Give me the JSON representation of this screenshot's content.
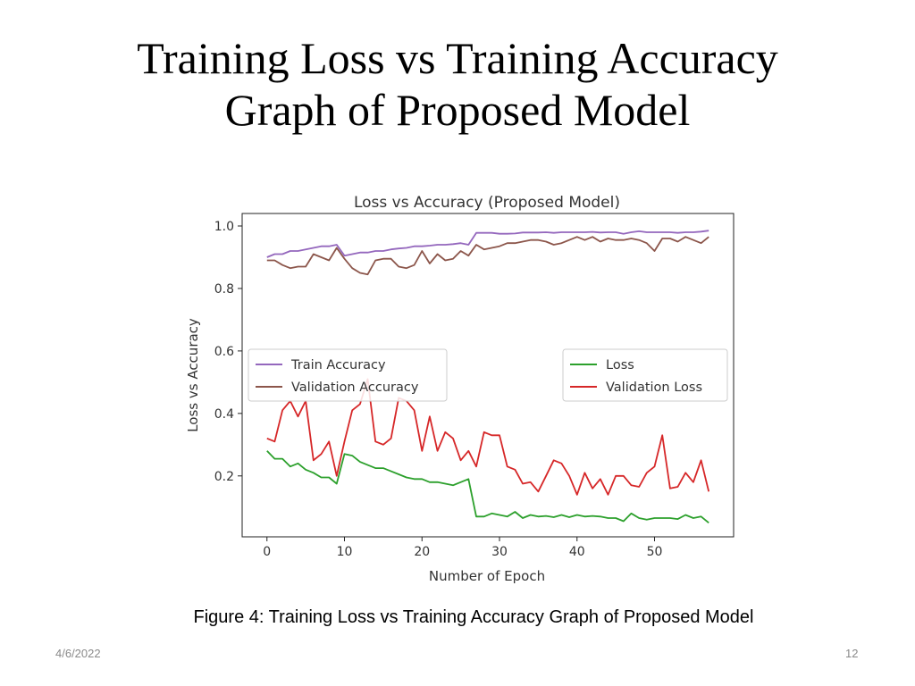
{
  "slide": {
    "title_line1": "Training Loss vs Training Accuracy",
    "title_line2": "Graph of Proposed Model",
    "caption": "Figure 4: Training Loss vs Training Accuracy Graph of Proposed Model",
    "date": "4/6/2022",
    "page_number": "12"
  },
  "chart_data": {
    "type": "line",
    "title": "Loss vs Accuracy (Proposed Model)",
    "xlabel": "Number of Epoch",
    "ylabel": "Loss vs Accuracy",
    "xlim": [
      -3.2,
      60.2
    ],
    "ylim": [
      0.005,
      1.04
    ],
    "xticks": [
      0,
      10,
      20,
      30,
      40,
      50
    ],
    "yticks": [
      0.2,
      0.4,
      0.6,
      0.8,
      1.0
    ],
    "ytick_labels": [
      "0.2",
      "0.4",
      "0.6",
      "0.8",
      "1.0"
    ],
    "legends": [
      {
        "position": "center-left",
        "entries": [
          0,
          1
        ]
      },
      {
        "position": "center-right",
        "entries": [
          2,
          3
        ]
      }
    ],
    "x": [
      0,
      1,
      2,
      3,
      4,
      5,
      6,
      7,
      8,
      9,
      10,
      11,
      12,
      13,
      14,
      15,
      16,
      17,
      18,
      19,
      20,
      21,
      22,
      23,
      24,
      25,
      26,
      27,
      28,
      29,
      30,
      31,
      32,
      33,
      34,
      35,
      36,
      37,
      38,
      39,
      40,
      41,
      42,
      43,
      44,
      45,
      46,
      47,
      48,
      49,
      50,
      51,
      52,
      53,
      54,
      55,
      56,
      57
    ],
    "series": [
      {
        "name": "Train Accuracy",
        "color": "#9467bd",
        "values": [
          0.9,
          0.91,
          0.91,
          0.92,
          0.92,
          0.925,
          0.93,
          0.935,
          0.935,
          0.94,
          0.905,
          0.91,
          0.915,
          0.915,
          0.92,
          0.92,
          0.925,
          0.928,
          0.93,
          0.935,
          0.935,
          0.937,
          0.94,
          0.94,
          0.942,
          0.945,
          0.94,
          0.978,
          0.978,
          0.978,
          0.975,
          0.975,
          0.976,
          0.979,
          0.979,
          0.979,
          0.98,
          0.978,
          0.98,
          0.98,
          0.98,
          0.98,
          0.981,
          0.979,
          0.98,
          0.98,
          0.975,
          0.98,
          0.983,
          0.98,
          0.98,
          0.98,
          0.98,
          0.978,
          0.98,
          0.98,
          0.982,
          0.985
        ]
      },
      {
        "name": "Validation Accuracy",
        "color": "#8c564b",
        "values": [
          0.89,
          0.89,
          0.875,
          0.865,
          0.87,
          0.87,
          0.91,
          0.9,
          0.89,
          0.93,
          0.895,
          0.865,
          0.85,
          0.845,
          0.89,
          0.895,
          0.895,
          0.87,
          0.865,
          0.875,
          0.92,
          0.88,
          0.91,
          0.89,
          0.895,
          0.92,
          0.905,
          0.94,
          0.925,
          0.93,
          0.935,
          0.945,
          0.945,
          0.95,
          0.955,
          0.955,
          0.95,
          0.94,
          0.945,
          0.955,
          0.965,
          0.955,
          0.965,
          0.95,
          0.96,
          0.955,
          0.955,
          0.96,
          0.955,
          0.945,
          0.92,
          0.96,
          0.96,
          0.95,
          0.965,
          0.955,
          0.945,
          0.965
        ]
      },
      {
        "name": "Loss",
        "color": "#2ca02c",
        "values": [
          0.28,
          0.255,
          0.255,
          0.23,
          0.24,
          0.22,
          0.21,
          0.195,
          0.195,
          0.175,
          0.27,
          0.265,
          0.245,
          0.235,
          0.225,
          0.225,
          0.215,
          0.205,
          0.195,
          0.19,
          0.19,
          0.18,
          0.18,
          0.175,
          0.17,
          0.18,
          0.19,
          0.07,
          0.07,
          0.08,
          0.075,
          0.07,
          0.085,
          0.065,
          0.075,
          0.07,
          0.072,
          0.068,
          0.075,
          0.068,
          0.075,
          0.07,
          0.072,
          0.07,
          0.065,
          0.065,
          0.055,
          0.08,
          0.065,
          0.06,
          0.065,
          0.065,
          0.065,
          0.062,
          0.075,
          0.065,
          0.07,
          0.05
        ]
      },
      {
        "name": "Validation Loss",
        "color": "#d62728",
        "values": [
          0.32,
          0.31,
          0.41,
          0.44,
          0.39,
          0.44,
          0.25,
          0.27,
          0.31,
          0.2,
          0.31,
          0.41,
          0.43,
          0.51,
          0.31,
          0.3,
          0.32,
          0.45,
          0.44,
          0.41,
          0.28,
          0.39,
          0.28,
          0.34,
          0.32,
          0.25,
          0.28,
          0.23,
          0.34,
          0.33,
          0.33,
          0.23,
          0.22,
          0.175,
          0.18,
          0.15,
          0.2,
          0.25,
          0.24,
          0.2,
          0.14,
          0.21,
          0.16,
          0.19,
          0.14,
          0.2,
          0.2,
          0.17,
          0.165,
          0.21,
          0.23,
          0.33,
          0.16,
          0.165,
          0.21,
          0.18,
          0.25,
          0.15
        ]
      }
    ]
  }
}
